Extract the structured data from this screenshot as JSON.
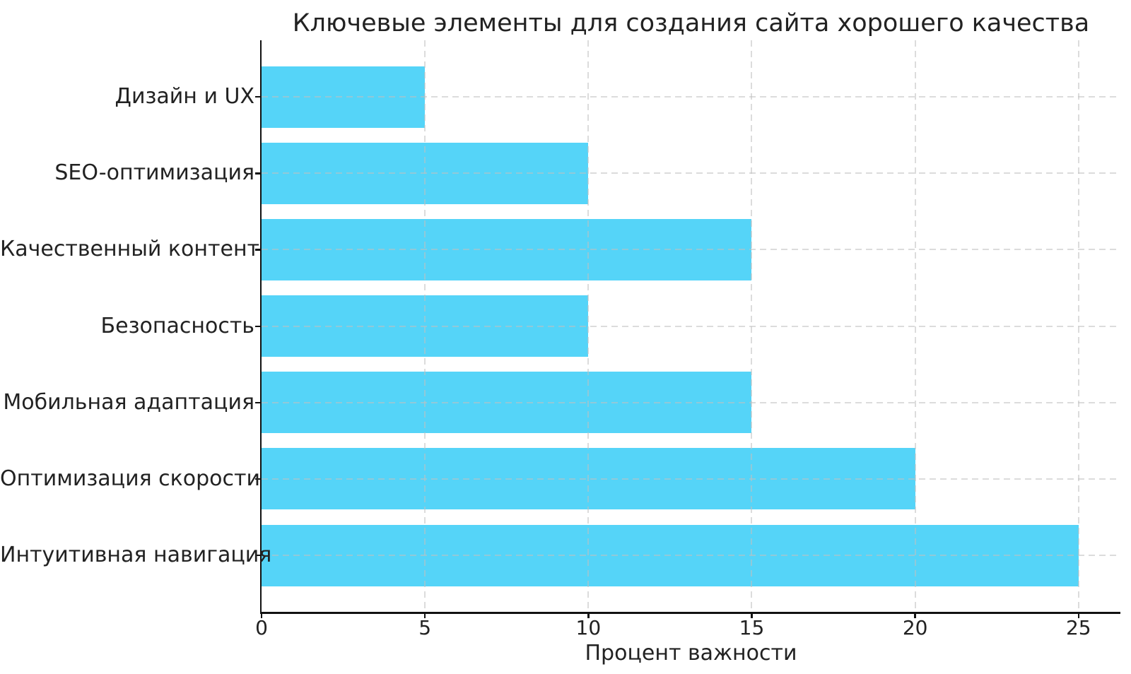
{
  "chart_data": {
    "type": "bar",
    "orientation": "horizontal",
    "title": "Ключевые элементы для создания сайта хорошего качества",
    "xlabel": "Процент важности",
    "ylabel": "",
    "categories": [
      "Дизайн и UX",
      "SEO-оптимизация",
      "Качественный контент",
      "Безопасность",
      "Мобильная адаптация",
      "Оптимизация скорости",
      "Интуитивная навигация"
    ],
    "values": [
      5,
      10,
      15,
      10,
      15,
      20,
      25
    ],
    "xticks": [
      0,
      5,
      10,
      15,
      20,
      25
    ],
    "xlim": [
      0,
      26.28
    ],
    "grid": "dashed",
    "legend": "none",
    "bar_color": "#55d4f8",
    "grid_color": "#c0c0c0",
    "axis_color": "#111111",
    "text_color": "#222222",
    "background": "#ffffff"
  }
}
